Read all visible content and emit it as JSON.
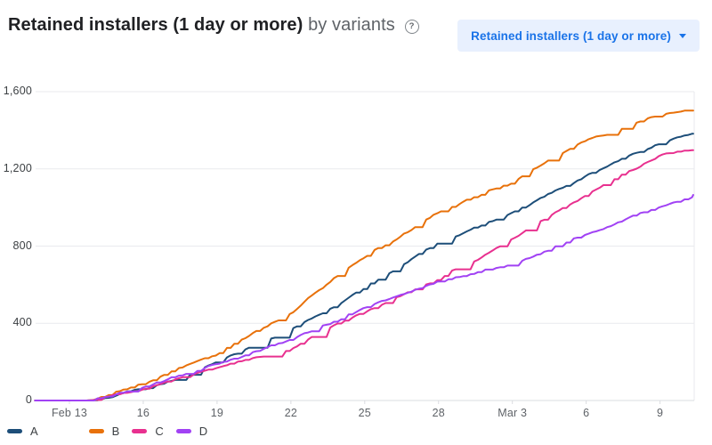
{
  "header": {
    "title": "Retained installers (1 day or more)",
    "subtitle": "by variants",
    "help_glyph": "?",
    "metric_dropdown": {
      "label": "Retained installers (1 day or more)"
    }
  },
  "colors": {
    "title_text": "#202124",
    "subtitle_text": "#5f6368",
    "button_bg": "#e8f0fe",
    "button_text": "#1a73e8",
    "gridline": "#e9eaee",
    "axis_line": "#dadce0",
    "x_tick_label": "#5f6368",
    "y_tick_label": "#3c4043"
  },
  "chart_data": {
    "type": "line",
    "title": "Retained installers (1 day or more) by variants",
    "xlabel": "",
    "ylabel": "",
    "ylim": [
      0,
      1600
    ],
    "grid": "horizontal",
    "legend_position": "bottom",
    "x_range_days": [
      -1.4,
      25.35
    ],
    "y_ticks": [
      {
        "label": "0",
        "value": 0
      },
      {
        "label": "400",
        "value": 400
      },
      {
        "label": "800",
        "value": 800
      },
      {
        "label": "1,200",
        "value": 1200
      },
      {
        "label": "1,600",
        "value": 1600
      }
    ],
    "x_ticks": [
      {
        "label": "Feb 13",
        "day": 0
      },
      {
        "label": "16",
        "day": 3
      },
      {
        "label": "19",
        "day": 6
      },
      {
        "label": "22",
        "day": 9
      },
      {
        "label": "25",
        "day": 12
      },
      {
        "label": "28",
        "day": 15
      },
      {
        "label": "Mar 3",
        "day": 18
      },
      {
        "label": "6",
        "day": 21
      },
      {
        "label": "9",
        "day": 24
      }
    ],
    "series": [
      {
        "name": "A",
        "color": "#1d4e79",
        "x_days": [
          -1.4,
          0.8,
          1.5,
          2,
          3,
          6,
          9,
          12,
          15,
          18,
          21,
          24,
          25.35
        ],
        "values": [
          0,
          0,
          18,
          35,
          62,
          195,
          355,
          580,
          810,
          960,
          1160,
          1330,
          1375
        ]
      },
      {
        "name": "B",
        "color": "#e8710a",
        "x_days": [
          -1.4,
          0.8,
          1.5,
          2,
          3,
          6,
          9,
          12,
          15,
          18,
          21,
          24,
          25.35
        ],
        "values": [
          0,
          0,
          22,
          45,
          85,
          230,
          450,
          750,
          975,
          1130,
          1340,
          1485,
          1500
        ]
      },
      {
        "name": "C",
        "color": "#e8308f",
        "x_days": [
          -1.4,
          0.8,
          1.5,
          2,
          3,
          6,
          9,
          12,
          15,
          18,
          21,
          24,
          25.35
        ],
        "values": [
          0,
          0,
          10,
          25,
          48,
          160,
          260,
          460,
          640,
          830,
          1060,
          1265,
          1290
        ]
      },
      {
        "name": "D",
        "color": "#a142f4",
        "x_days": [
          -1.4,
          0.8,
          1.5,
          2,
          3,
          6,
          9,
          12,
          15,
          18,
          21,
          24,
          25.35
        ],
        "values": [
          0,
          0,
          18,
          40,
          70,
          185,
          310,
          475,
          612,
          705,
          865,
          1015,
          1065
        ]
      }
    ]
  }
}
